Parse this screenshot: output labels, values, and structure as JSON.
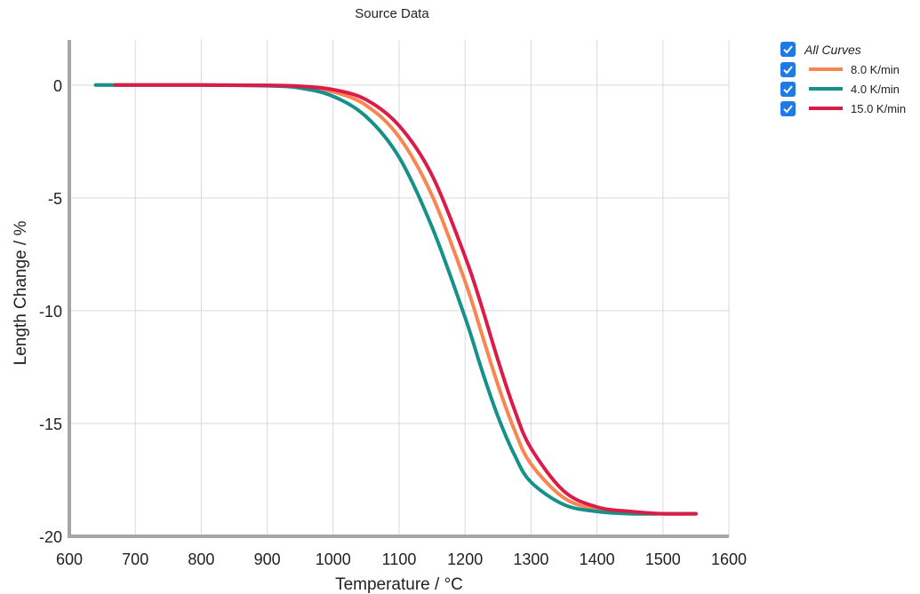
{
  "chart_data": {
    "type": "line",
    "title": "Source Data",
    "xlabel": "Temperature / °C",
    "ylabel": "Length Change / %",
    "xlim": [
      600,
      1600
    ],
    "ylim": [
      -20,
      2
    ],
    "xticks": [
      "600",
      "700",
      "800",
      "900",
      "1000",
      "1100",
      "1200",
      "1300",
      "1400",
      "1500",
      "1600"
    ],
    "yticks": [
      "0",
      "-5",
      "-10",
      "-15",
      "-20"
    ],
    "grid": true,
    "legend_position": "top-right",
    "legend_all_label": "All Curves",
    "series": [
      {
        "name": "8.0 K/min",
        "color": "#f98650",
        "x": [
          640,
          700,
          800,
          900,
          950,
          1000,
          1050,
          1100,
          1150,
          1200,
          1225,
          1250,
          1275,
          1300,
          1350,
          1400,
          1450,
          1500,
          1550
        ],
        "y": [
          0,
          0,
          0,
          -0.02,
          -0.08,
          -0.3,
          -0.9,
          -2.3,
          -4.9,
          -8.7,
          -11.0,
          -13.3,
          -15.3,
          -16.8,
          -18.3,
          -18.8,
          -18.95,
          -19.0,
          -19.0
        ]
      },
      {
        "name": "4.0 K/min",
        "color": "#14918a",
        "x": [
          640,
          700,
          800,
          900,
          950,
          1000,
          1050,
          1100,
          1150,
          1200,
          1225,
          1250,
          1275,
          1300,
          1350,
          1400,
          1450,
          1500,
          1550
        ],
        "y": [
          0,
          0,
          0,
          -0.03,
          -0.13,
          -0.5,
          -1.4,
          -3.2,
          -6.3,
          -10.3,
          -12.6,
          -14.7,
          -16.4,
          -17.6,
          -18.6,
          -18.9,
          -19.0,
          -19.0,
          -19.0
        ]
      },
      {
        "name": "15.0 K/min",
        "color": "#db1c48",
        "x": [
          670,
          700,
          800,
          900,
          950,
          1000,
          1050,
          1100,
          1150,
          1200,
          1225,
          1250,
          1275,
          1300,
          1350,
          1400,
          1450,
          1500,
          1550
        ],
        "y": [
          0,
          0,
          0,
          -0.01,
          -0.05,
          -0.2,
          -0.65,
          -1.8,
          -4.0,
          -7.6,
          -9.8,
          -12.2,
          -14.4,
          -16.1,
          -18.0,
          -18.7,
          -18.9,
          -19.0,
          -19.0
        ]
      }
    ]
  }
}
